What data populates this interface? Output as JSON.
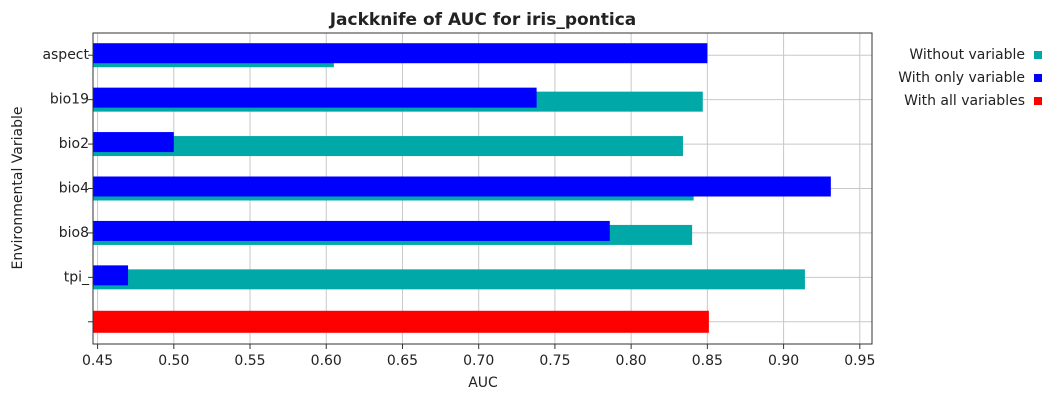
{
  "chart_data": {
    "type": "barh",
    "title": "Jackknife of AUC for iris_pontica",
    "x_label": "AUC",
    "y_label": "Environmental Variable",
    "categories": [
      "aspect",
      "bio19",
      "bio2",
      "bio4",
      "bio8",
      "tpi_",
      null
    ],
    "series": [
      {
        "name": "Without variable",
        "color": "#00a8a8",
        "values": [
          0.605,
          0.847,
          0.834,
          0.841,
          0.84,
          0.914,
          null
        ]
      },
      {
        "name": "With only variable",
        "color": "#0000ff",
        "values": [
          0.85,
          0.738,
          0.5,
          0.931,
          0.786,
          0.47,
          null
        ]
      },
      {
        "name": "With all variables",
        "color": "#ff0000",
        "values": [
          null,
          null,
          null,
          null,
          null,
          null,
          0.851
        ]
      }
    ],
    "xlim": [
      0.447,
      0.958
    ],
    "xticks": [
      0.45,
      {
        "value": 0.5,
        "label": "0.50"
      },
      0.55,
      {
        "value": 0.6,
        "label": "0.60"
      },
      0.65,
      {
        "value": 0.7,
        "label": "0.70"
      },
      0.75,
      {
        "value": 0.8,
        "label": "0.80"
      },
      0.85,
      {
        "value": 0.9,
        "label": "0.90"
      },
      0.95
    ],
    "grid": true,
    "legend": "right"
  }
}
